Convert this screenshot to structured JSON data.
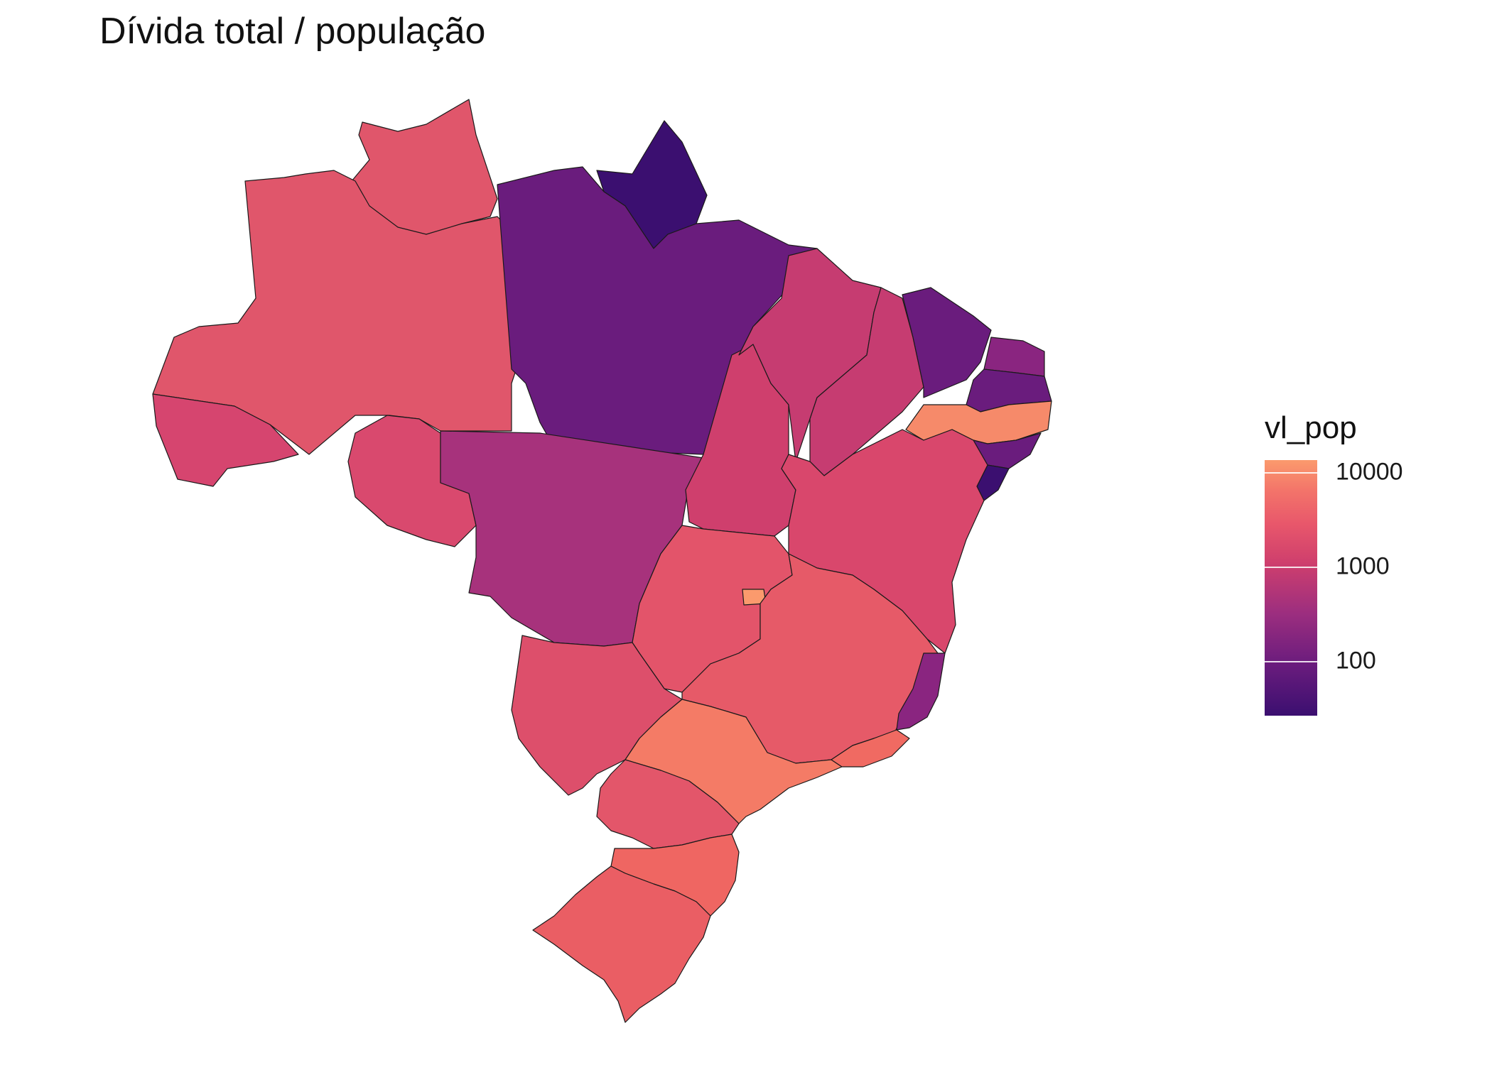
{
  "title": "Dívida total / população",
  "legend": {
    "title": "vl_pop",
    "scale": "log10",
    "palette": "magma",
    "range": [
      25,
      14000
    ],
    "ticks": [
      {
        "value": 10000,
        "label": "10000"
      },
      {
        "value": 1000,
        "label": "1000"
      },
      {
        "value": 100,
        "label": "100"
      }
    ],
    "colors": {
      "low": "#3b0f70",
      "mid": "#cf3f6d",
      "high": "#fb9a6d"
    }
  },
  "regions": [
    {
      "id": "RR",
      "color": "#e0566b"
    },
    {
      "id": "AP",
      "color": "#3b0f70"
    },
    {
      "id": "AM",
      "color": "#e0566b"
    },
    {
      "id": "PA",
      "color": "#6a1c7d"
    },
    {
      "id": "AC",
      "color": "#d6456f"
    },
    {
      "id": "RO",
      "color": "#d9496e"
    },
    {
      "id": "MT",
      "color": "#a7327c"
    },
    {
      "id": "TO",
      "color": "#cf3f6d"
    },
    {
      "id": "MA",
      "color": "#c63c71"
    },
    {
      "id": "PI",
      "color": "#c63c71"
    },
    {
      "id": "CE",
      "color": "#6a1c7d"
    },
    {
      "id": "RN",
      "color": "#8a2580"
    },
    {
      "id": "PB",
      "color": "#6a1c7d"
    },
    {
      "id": "PE",
      "color": "#f68a6a"
    },
    {
      "id": "AL",
      "color": "#6a1c7d"
    },
    {
      "id": "SE",
      "color": "#3b0f70"
    },
    {
      "id": "BA",
      "color": "#d9476c"
    },
    {
      "id": "GO",
      "color": "#e3546a"
    },
    {
      "id": "DF",
      "color": "#fb9a6d"
    },
    {
      "id": "MG",
      "color": "#e65a68"
    },
    {
      "id": "ES",
      "color": "#8a2580"
    },
    {
      "id": "MS",
      "color": "#dd4f6b"
    },
    {
      "id": "SP",
      "color": "#f47b66"
    },
    {
      "id": "RJ",
      "color": "#f06a62"
    },
    {
      "id": "PR",
      "color": "#e3566a"
    },
    {
      "id": "SC",
      "color": "#ef6662"
    },
    {
      "id": "RS",
      "color": "#ea5e64"
    }
  ]
}
